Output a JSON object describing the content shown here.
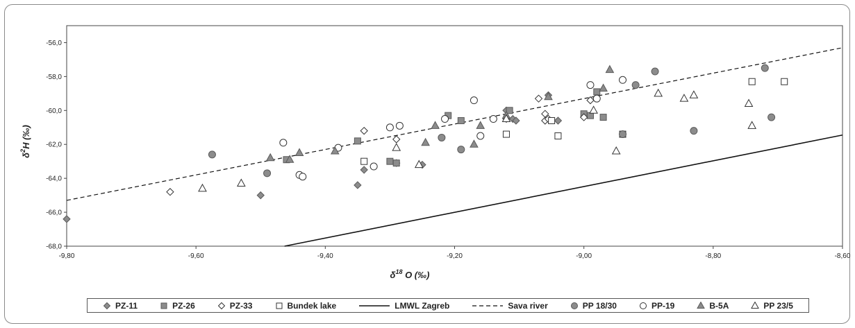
{
  "chart_data": {
    "type": "scatter",
    "xlabel": "δ18O (‰)",
    "ylabel": "δ2H (‰)",
    "xlim": [
      -9.8,
      -8.6
    ],
    "ylim": [
      -68,
      -55
    ],
    "x_ticks": [
      "-9,80",
      "-9,60",
      "-9,40",
      "-9,20",
      "-9,00",
      "-8,80",
      "-8,60"
    ],
    "y_ticks": [
      "-68,0",
      "-66,0",
      "-64,0",
      "-62,0",
      "-60,0",
      "-58,0",
      "-56,0"
    ],
    "legend_position": "bottom",
    "grid": false,
    "series": [
      {
        "name": "PZ-11",
        "marker": "diamond-filled",
        "color": "#888888",
        "points": [
          [
            -9.8,
            -66.4
          ],
          [
            -9.5,
            -65.0
          ],
          [
            -9.35,
            -64.4
          ],
          [
            -9.34,
            -63.5
          ],
          [
            -9.29,
            -63.1
          ],
          [
            -9.25,
            -63.2
          ],
          [
            -9.12,
            -60.5
          ],
          [
            -9.12,
            -60.0
          ],
          [
            -9.11,
            -60.5
          ],
          [
            -9.105,
            -60.6
          ],
          [
            -9.055,
            -59.1
          ],
          [
            -9.04,
            -60.6
          ]
        ]
      },
      {
        "name": "PZ-26",
        "marker": "square-filled",
        "color": "#888888",
        "points": [
          [
            -9.46,
            -62.9
          ],
          [
            -9.35,
            -61.8
          ],
          [
            -9.3,
            -63.0
          ],
          [
            -9.29,
            -63.1
          ],
          [
            -9.21,
            -60.3
          ],
          [
            -9.19,
            -60.6
          ],
          [
            -9.115,
            -60.0
          ],
          [
            -9.0,
            -60.2
          ],
          [
            -8.99,
            -60.3
          ],
          [
            -8.98,
            -58.9
          ],
          [
            -8.97,
            -60.4
          ]
        ]
      },
      {
        "name": "PZ-33",
        "marker": "diamond-open",
        "color": "#ffffff",
        "points": [
          [
            -9.64,
            -64.8
          ],
          [
            -9.34,
            -61.2
          ],
          [
            -9.29,
            -61.7
          ],
          [
            -9.07,
            -59.3
          ],
          [
            -9.06,
            -60.2
          ],
          [
            -9.06,
            -60.6
          ],
          [
            -9.055,
            -60.5
          ],
          [
            -9.0,
            -60.4
          ],
          [
            -8.99,
            -59.4
          ]
        ]
      },
      {
        "name": "Bundek lake",
        "marker": "square-open",
        "color": "#ffffff",
        "points": [
          [
            -9.34,
            -63.0
          ],
          [
            -9.12,
            -61.4
          ],
          [
            -9.05,
            -60.6
          ],
          [
            -9.04,
            -61.5
          ],
          [
            -8.94,
            -61.4
          ],
          [
            -8.74,
            -58.3
          ],
          [
            -8.69,
            -58.3
          ]
        ]
      },
      {
        "name": "LMWL Zagreb",
        "marker": "line-solid",
        "color": "#111111",
        "points": [
          [
            -9.463,
            -68.0
          ],
          [
            -8.6,
            -61.45
          ]
        ]
      },
      {
        "name": "Sava river",
        "marker": "line-dashed",
        "color": "#111111",
        "points": [
          [
            -9.8,
            -65.3
          ],
          [
            -8.6,
            -56.3
          ]
        ]
      },
      {
        "name": "PP 18/30",
        "marker": "circle-filled",
        "color": "#888888",
        "points": [
          [
            -9.575,
            -62.6
          ],
          [
            -9.49,
            -63.7
          ],
          [
            -9.22,
            -61.6
          ],
          [
            -9.19,
            -62.3
          ],
          [
            -8.94,
            -61.4
          ],
          [
            -8.92,
            -58.5
          ],
          [
            -8.89,
            -57.7
          ],
          [
            -8.83,
            -61.2
          ],
          [
            -8.72,
            -57.5
          ],
          [
            -8.71,
            -60.4
          ]
        ]
      },
      {
        "name": "PP-19",
        "marker": "circle-open",
        "color": "#ffffff",
        "points": [
          [
            -9.465,
            -61.9
          ],
          [
            -9.44,
            -63.8
          ],
          [
            -9.435,
            -63.9
          ],
          [
            -9.38,
            -62.2
          ],
          [
            -9.325,
            -63.3
          ],
          [
            -9.3,
            -61.0
          ],
          [
            -9.285,
            -60.9
          ],
          [
            -9.215,
            -60.5
          ],
          [
            -9.17,
            -59.4
          ],
          [
            -9.16,
            -61.5
          ],
          [
            -9.14,
            -60.5
          ],
          [
            -8.99,
            -58.5
          ],
          [
            -8.98,
            -59.3
          ],
          [
            -8.94,
            -58.2
          ]
        ]
      },
      {
        "name": "B-5A",
        "marker": "triangle-filled",
        "color": "#888888",
        "points": [
          [
            -9.485,
            -62.8
          ],
          [
            -9.455,
            -62.9
          ],
          [
            -9.44,
            -62.5
          ],
          [
            -9.385,
            -62.4
          ],
          [
            -9.245,
            -61.9
          ],
          [
            -9.23,
            -60.9
          ],
          [
            -9.17,
            -62.0
          ],
          [
            -9.16,
            -60.9
          ],
          [
            -9.12,
            -60.3
          ],
          [
            -9.055,
            -59.2
          ],
          [
            -8.97,
            -58.7
          ],
          [
            -8.96,
            -57.6
          ]
        ]
      },
      {
        "name": "PP 23/5",
        "marker": "triangle-open",
        "color": "#ffffff",
        "points": [
          [
            -9.59,
            -64.6
          ],
          [
            -9.53,
            -64.3
          ],
          [
            -9.29,
            -62.2
          ],
          [
            -9.255,
            -63.2
          ],
          [
            -9.12,
            -60.5
          ],
          [
            -8.985,
            -60.0
          ],
          [
            -8.95,
            -62.4
          ],
          [
            -8.885,
            -59.0
          ],
          [
            -8.845,
            -59.3
          ],
          [
            -8.83,
            -59.1
          ],
          [
            -8.745,
            -59.6
          ],
          [
            -8.74,
            -60.9
          ]
        ]
      }
    ]
  }
}
